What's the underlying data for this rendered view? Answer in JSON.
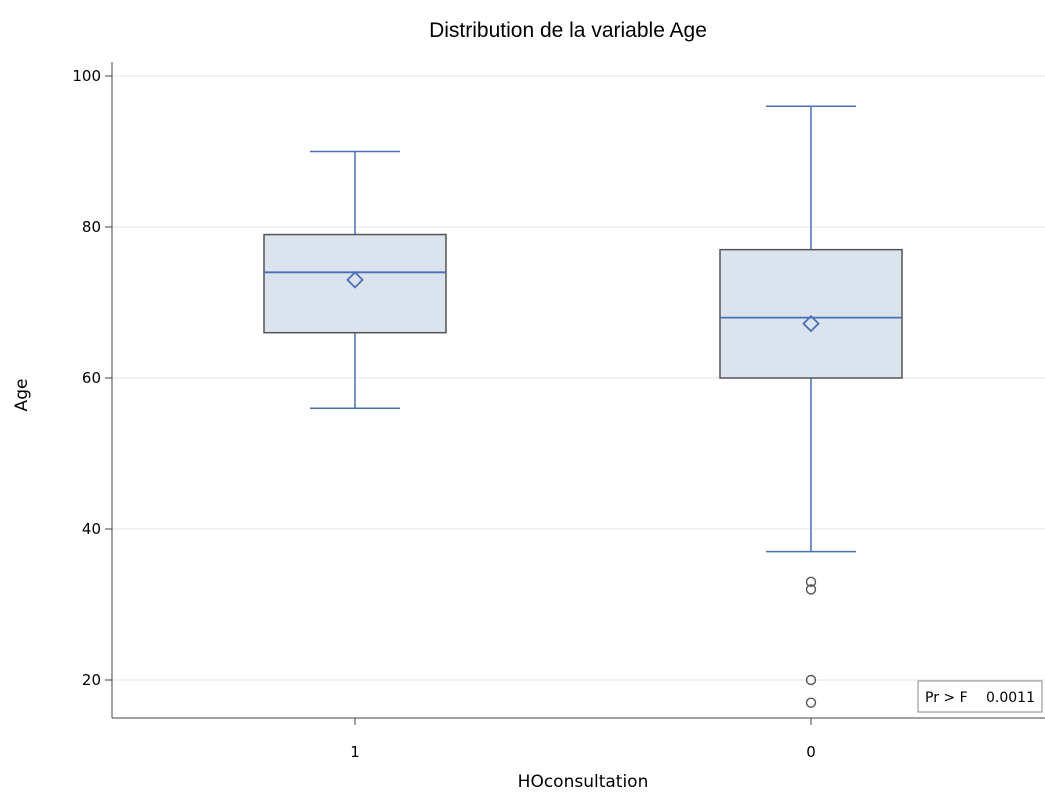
{
  "chart_data": {
    "type": "boxplot",
    "title": "Distribution de la variable Age",
    "xlabel": "HOconsultation",
    "ylabel": "Age",
    "ylim": [
      15,
      100
    ],
    "yticks": [
      20,
      40,
      60,
      80,
      100
    ],
    "grid": true,
    "categories": [
      "1",
      "0"
    ],
    "boxes": [
      {
        "category": "1",
        "whisker_low": 56,
        "q1": 66,
        "median": 74,
        "q3": 79,
        "whisker_high": 90,
        "mean": 73,
        "outliers": []
      },
      {
        "category": "0",
        "whisker_low": 37,
        "q1": 60,
        "median": 68,
        "q3": 77,
        "whisker_high": 96,
        "mean": 67.2,
        "outliers": [
          33,
          32,
          20,
          17
        ]
      }
    ],
    "inset": {
      "label": "Pr > F",
      "value": "0.0011",
      "position": "bottom-right"
    },
    "colors": {
      "box_fill": "#dbe3ee",
      "box_outline": "#555555",
      "whisker": "#4a6fb5",
      "median": "#4a6fb5",
      "mean_marker": "#4a6fb5",
      "outlier": "#555555",
      "grid": "#e6e6e6",
      "axis": "#444444"
    }
  }
}
